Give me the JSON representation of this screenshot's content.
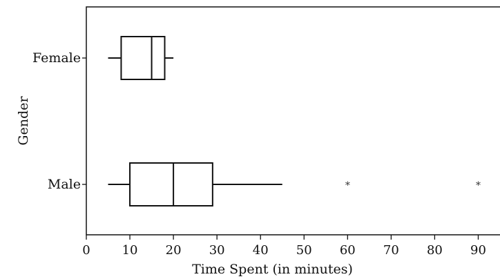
{
  "chart_data": {
    "type": "boxplot",
    "orientation": "horizontal",
    "xlabel": "Time Spent (in minutes)",
    "ylabel": "Gender",
    "xlim": [
      0,
      95
    ],
    "xticks": [
      0,
      10,
      20,
      30,
      40,
      50,
      60,
      70,
      80,
      90
    ],
    "categories": [
      "Female",
      "Male"
    ],
    "series": [
      {
        "name": "Female",
        "min": 5,
        "q1": 8,
        "median": 15,
        "q3": 18,
        "max": 20,
        "outliers": []
      },
      {
        "name": "Male",
        "min": 5,
        "q1": 10,
        "median": 20,
        "q3": 29,
        "max": 45,
        "outliers": [
          60,
          90
        ]
      }
    ],
    "grid": false,
    "colors": {
      "ink": "#111111",
      "background": "#ffffff"
    }
  }
}
